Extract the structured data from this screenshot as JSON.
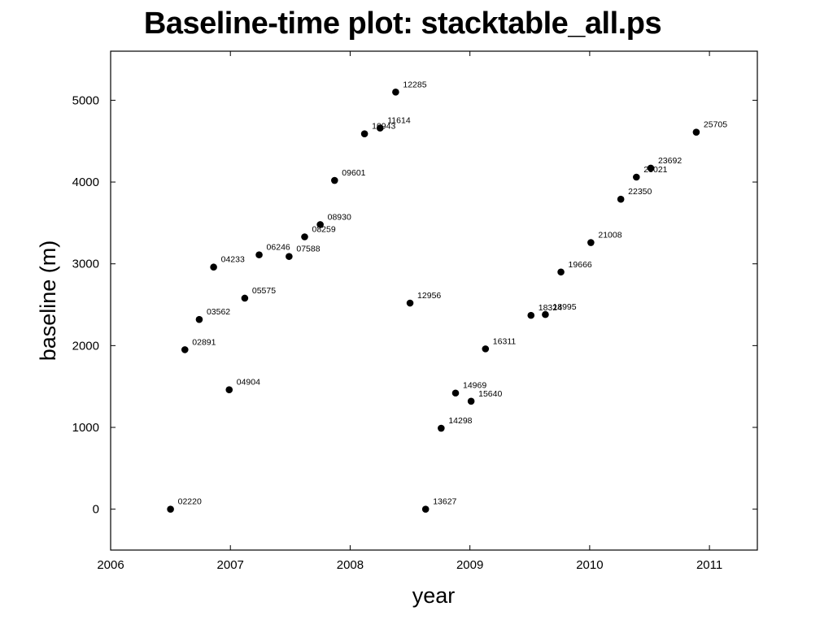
{
  "title": "Baseline-time plot: stacktable_all.ps",
  "chart_data": {
    "type": "scatter",
    "xlabel": "year",
    "ylabel": "baseline (m)",
    "xlim": [
      2006,
      2011.4
    ],
    "ylim": [
      -500,
      5600
    ],
    "x_ticks": [
      2006,
      2007,
      2008,
      2009,
      2010,
      2011
    ],
    "y_ticks": [
      0,
      1000,
      2000,
      3000,
      4000,
      5000
    ],
    "grid": false,
    "points": [
      {
        "label": "02220",
        "x": 2006.5,
        "y": 0
      },
      {
        "label": "02891",
        "x": 2006.62,
        "y": 1950
      },
      {
        "label": "03562",
        "x": 2006.74,
        "y": 2320
      },
      {
        "label": "04233",
        "x": 2006.86,
        "y": 2960
      },
      {
        "label": "04904",
        "x": 2006.99,
        "y": 1460
      },
      {
        "label": "05575",
        "x": 2007.12,
        "y": 2580
      },
      {
        "label": "06246",
        "x": 2007.24,
        "y": 3110
      },
      {
        "label": "07588",
        "x": 2007.49,
        "y": 3090
      },
      {
        "label": "08259",
        "x": 2007.62,
        "y": 3330
      },
      {
        "label": "08930",
        "x": 2007.75,
        "y": 3480
      },
      {
        "label": "09601",
        "x": 2007.87,
        "y": 4020
      },
      {
        "label": "10943",
        "x": 2008.12,
        "y": 4590
      },
      {
        "label": "11614",
        "x": 2008.25,
        "y": 4660
      },
      {
        "label": "12285",
        "x": 2008.38,
        "y": 5100
      },
      {
        "label": "12956",
        "x": 2008.5,
        "y": 2520
      },
      {
        "label": "13627",
        "x": 2008.63,
        "y": 0
      },
      {
        "label": "14298",
        "x": 2008.76,
        "y": 990
      },
      {
        "label": "14969",
        "x": 2008.88,
        "y": 1420
      },
      {
        "label": "15640",
        "x": 2009.01,
        "y": 1320
      },
      {
        "label": "16311",
        "x": 2009.13,
        "y": 1960
      },
      {
        "label": "18324",
        "x": 2009.51,
        "y": 2370
      },
      {
        "label": "18995",
        "x": 2009.63,
        "y": 2380
      },
      {
        "label": "19666",
        "x": 2009.76,
        "y": 2900
      },
      {
        "label": "21008",
        "x": 2010.01,
        "y": 3260
      },
      {
        "label": "22350",
        "x": 2010.26,
        "y": 3790
      },
      {
        "label": "23021",
        "x": 2010.39,
        "y": 4060
      },
      {
        "label": "23692",
        "x": 2010.51,
        "y": 4170
      },
      {
        "label": "25705",
        "x": 2010.89,
        "y": 4610
      }
    ]
  }
}
